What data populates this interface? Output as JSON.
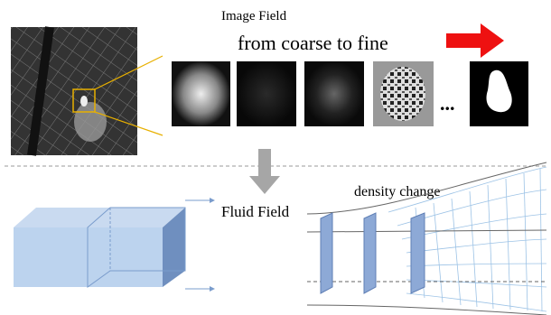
{
  "image_field": {
    "title": "Image Field",
    "subtitle": "from coarse to fine",
    "ellipsis": "..."
  },
  "fluid_field": {
    "label": "Fluid Field",
    "annotation": "density change"
  }
}
